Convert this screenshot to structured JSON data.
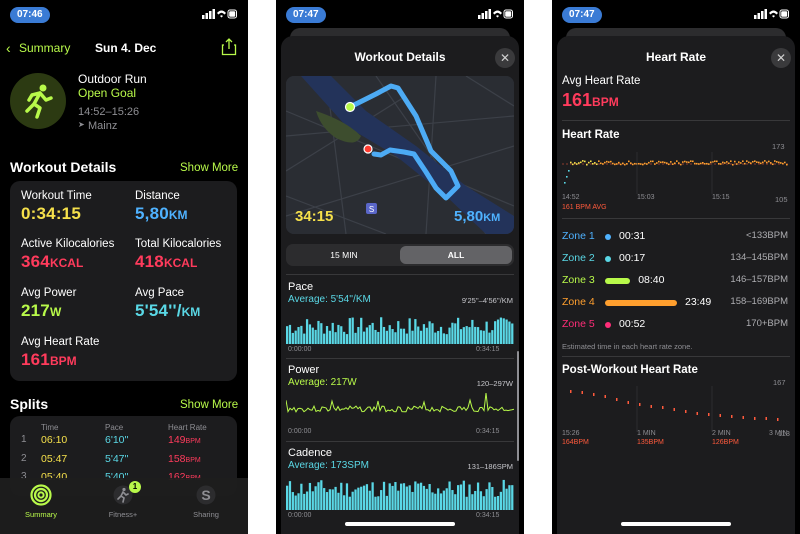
{
  "colors": {
    "green": "#b8f94a",
    "cyan": "#5ad8e6",
    "red": "#ff3b5c",
    "yellow": "#f5e04b",
    "blue": "#4fb2ff",
    "orange": "#ff9f2e",
    "pink": "#ff2d78"
  },
  "screen1": {
    "status_time": "07:46",
    "nav": {
      "back_label": "Summary",
      "date": "Sun 4. Dec",
      "share_icon": "share-icon"
    },
    "workout": {
      "icon": "running-figure-icon",
      "name": "Outdoor Run",
      "goal": "Open Goal",
      "time_range": "14:52–15:26",
      "location": "Mainz"
    },
    "details": {
      "title": "Workout Details",
      "show_more": "Show More",
      "metrics": [
        {
          "label": "Workout Time",
          "value": "0:34:15",
          "unit": ""
        },
        {
          "label": "Distance",
          "value": "5,80",
          "unit": "KM"
        },
        {
          "label": "Active Kilocalories",
          "value": "364",
          "unit": "KCAL"
        },
        {
          "label": "Total Kilocalories",
          "value": "418",
          "unit": "KCAL"
        },
        {
          "label": "Avg Power",
          "value": "217",
          "unit": "W"
        },
        {
          "label": "Avg Pace",
          "value": "5'54''/",
          "unit": "KM"
        },
        {
          "label": "Avg Heart Rate",
          "value": "161",
          "unit": "BPM"
        }
      ]
    },
    "splits": {
      "title": "Splits",
      "show_more": "Show More",
      "headers": [
        "Time",
        "Pace",
        "Heart Rate"
      ],
      "rows": [
        {
          "n": "1",
          "time": "06:10",
          "pace": "6'10''",
          "hr": "149",
          "unit": "BPM"
        },
        {
          "n": "2",
          "time": "05:47",
          "pace": "5'47''",
          "hr": "158",
          "unit": "BPM"
        },
        {
          "n": "3",
          "time": "05:40",
          "pace": "5'40''",
          "hr": "162",
          "unit": "BPM"
        }
      ]
    },
    "tabs": [
      {
        "label": "Summary",
        "icon": "activity-rings-icon"
      },
      {
        "label": "Fitness+",
        "icon": "fitness-plus-icon",
        "badge": "1"
      },
      {
        "label": "Sharing",
        "icon": "sharing-icon"
      }
    ]
  },
  "screen2": {
    "status_time": "07:47",
    "title": "Workout Details",
    "map": {
      "duration": "34:15",
      "distance": "5,80",
      "distance_unit": "KM"
    },
    "segment": {
      "options": [
        "15 MIN",
        "ALL"
      ],
      "selected": "ALL"
    },
    "pace": {
      "title": "Pace",
      "avg": "Average: 5'54''/KM",
      "range": "9'25''–4'56''/KM",
      "t0": "0:00:00",
      "t1": "0:34:15"
    },
    "power": {
      "title": "Power",
      "avg": "Average: 217W",
      "range": "120–297W",
      "t0": "0:00:00",
      "t1": "0:34:15"
    },
    "cadence": {
      "title": "Cadence",
      "avg": "Average: 173SPM",
      "range": "131–186SPM",
      "t0": "0:00:00",
      "t1": "0:34:15"
    }
  },
  "screen3": {
    "status_time": "07:47",
    "title": "Heart Rate",
    "avg_label": "Avg Heart Rate",
    "avg_value": "161",
    "avg_unit": "BPM",
    "hr_section": "Heart Rate",
    "hr_chart": {
      "ymax": "173",
      "ymin": "105",
      "x_labels": [
        "14:52",
        "15:03",
        "15:15"
      ],
      "note": "161 BPM AVG"
    },
    "zones": [
      {
        "name": "Zone 1",
        "time": "00:31",
        "range": "<133BPM",
        "fill": 0.03
      },
      {
        "name": "Zone 2",
        "time": "00:17",
        "range": "134–145BPM",
        "fill": 0.02
      },
      {
        "name": "Zone 3",
        "time": "08:40",
        "range": "146–157BPM",
        "fill": 0.35
      },
      {
        "name": "Zone 4",
        "time": "23:49",
        "range": "158–169BPM",
        "fill": 1.0
      },
      {
        "name": "Zone 5",
        "time": "00:52",
        "range": "170+BPM",
        "fill": 0.04
      }
    ],
    "zone_note": "Estimated time in each heart rate zone.",
    "post": {
      "title": "Post-Workout Heart Rate",
      "ymax": "167",
      "ymin": "113",
      "x_labels": [
        "15:26",
        "1 MIN",
        "2 MIN",
        "3 MIN"
      ],
      "values": [
        "164BPM",
        "135BPM",
        "126BPM"
      ]
    }
  }
}
